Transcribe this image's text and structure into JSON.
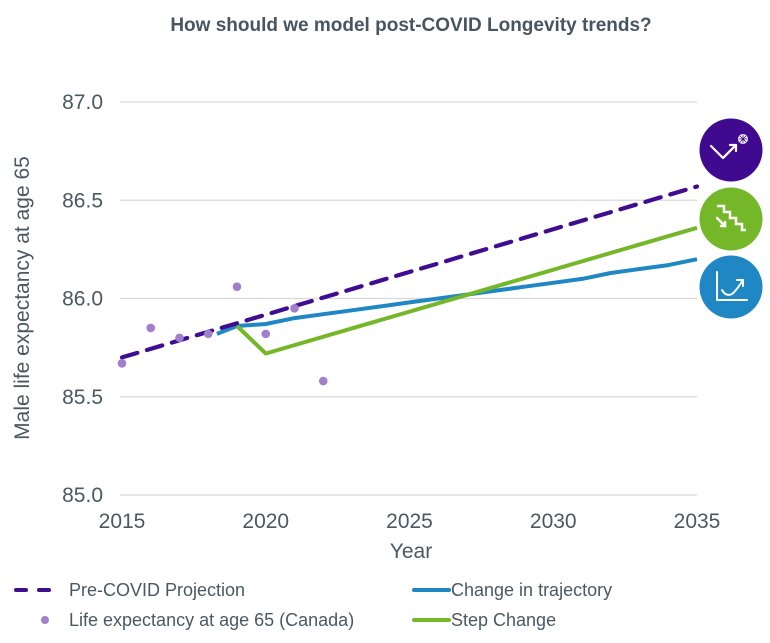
{
  "chart_data": {
    "type": "line",
    "title": "How should we model post-COVID Longevity trends?",
    "xlabel": "Year",
    "ylabel": "Male life expectancy at age 65",
    "xlim": [
      2015,
      2035
    ],
    "ylim": [
      85.0,
      87.0
    ],
    "x_ticks": [
      2015,
      2020,
      2025,
      2030,
      2035
    ],
    "x_tick_labels": [
      "2015",
      "2020",
      "2025",
      "2030",
      "2035"
    ],
    "y_ticks": [
      85.0,
      85.5,
      86.0,
      86.5,
      87.0
    ],
    "y_tick_labels": [
      "85.0",
      "85.5",
      "86.0",
      "86.5",
      "87.0"
    ],
    "grid": "horizontal",
    "legend_position": "bottom",
    "series": [
      {
        "key": "pre_covid",
        "name": "Pre-COVID Projection",
        "style": "dashed",
        "color": "#400d91",
        "points": [
          [
            2015,
            85.7
          ],
          [
            2035,
            86.57
          ]
        ]
      },
      {
        "key": "observed",
        "name": "Life expectancy at age 65 (Canada)",
        "style": "dots",
        "color": "#a07fcb",
        "points": [
          [
            2015,
            85.67
          ],
          [
            2016,
            85.85
          ],
          [
            2017,
            85.8
          ],
          [
            2018,
            85.82
          ],
          [
            2019,
            86.06
          ],
          [
            2020,
            85.82
          ],
          [
            2021,
            85.95
          ],
          [
            2022,
            85.58
          ]
        ]
      },
      {
        "key": "trajectory",
        "name": "Change in trajectory",
        "style": "solid",
        "color": "#1f87c4",
        "points": [
          [
            2018.3,
            85.82
          ],
          [
            2019,
            85.86
          ],
          [
            2020,
            85.87
          ],
          [
            2021,
            85.9
          ],
          [
            2022,
            85.92
          ],
          [
            2023,
            85.94
          ],
          [
            2024,
            85.96
          ],
          [
            2025,
            85.98
          ],
          [
            2026,
            86.0
          ],
          [
            2027,
            86.02
          ],
          [
            2028,
            86.04
          ],
          [
            2029,
            86.06
          ],
          [
            2030,
            86.08
          ],
          [
            2031,
            86.1
          ],
          [
            2032,
            86.13
          ],
          [
            2033,
            86.15
          ],
          [
            2034,
            86.17
          ],
          [
            2035,
            86.2
          ]
        ]
      },
      {
        "key": "step",
        "name": "Step Change",
        "style": "solid",
        "color": "#74b729",
        "points": [
          [
            2019,
            85.86
          ],
          [
            2020,
            85.72
          ],
          [
            2035,
            86.36
          ]
        ]
      }
    ],
    "legend": [
      {
        "key": "pre_covid",
        "label": "Pre-COVID Projection"
      },
      {
        "key": "trajectory",
        "label": "Change in trajectory"
      },
      {
        "key": "observed",
        "label": "Life expectancy at age 65 (Canada)"
      },
      {
        "key": "step",
        "label": "Step Change"
      }
    ]
  },
  "badges": [
    {
      "name": "v-shaped-recovery-icon",
      "color": "#3f0a8f",
      "meaning": "Pre-COVID Projection"
    },
    {
      "name": "step-down-stairs-icon",
      "color": "#74b729",
      "meaning": "Step Change"
    },
    {
      "name": "rising-curve-chart-icon",
      "color": "#1f87c4",
      "meaning": "Change in trajectory"
    }
  ]
}
